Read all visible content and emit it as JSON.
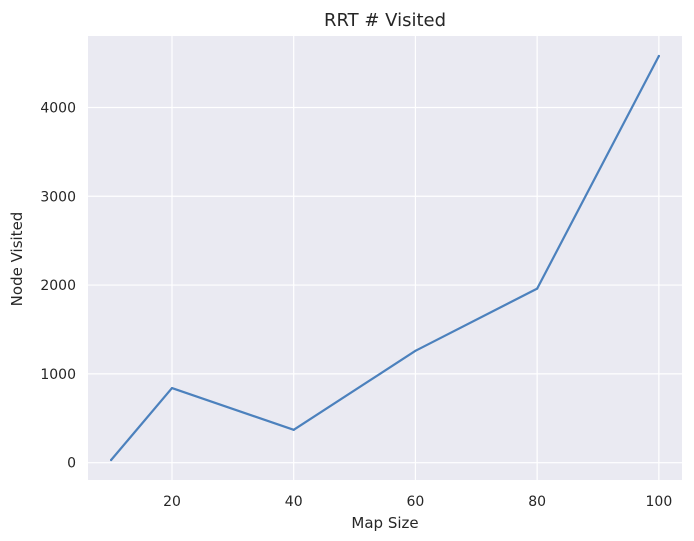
{
  "chart_data": {
    "type": "line",
    "title": "RRT # Visited",
    "xlabel": "Map Size",
    "ylabel": "Node Visited",
    "x": [
      10,
      20,
      40,
      60,
      80,
      100
    ],
    "series": [
      {
        "values": [
          30,
          840,
          370,
          1260,
          1960,
          4580
        ]
      }
    ],
    "xticks": [
      20,
      40,
      60,
      80,
      100
    ],
    "yticks": [
      0,
      1000,
      2000,
      3000,
      4000
    ],
    "xlim": [
      6.2,
      103.8
    ],
    "ylim": [
      -195,
      4805
    ],
    "grid": true,
    "colors": {
      "background": "#eaeaf2",
      "grid": "#ffffff",
      "line": "#4c81bd"
    }
  }
}
